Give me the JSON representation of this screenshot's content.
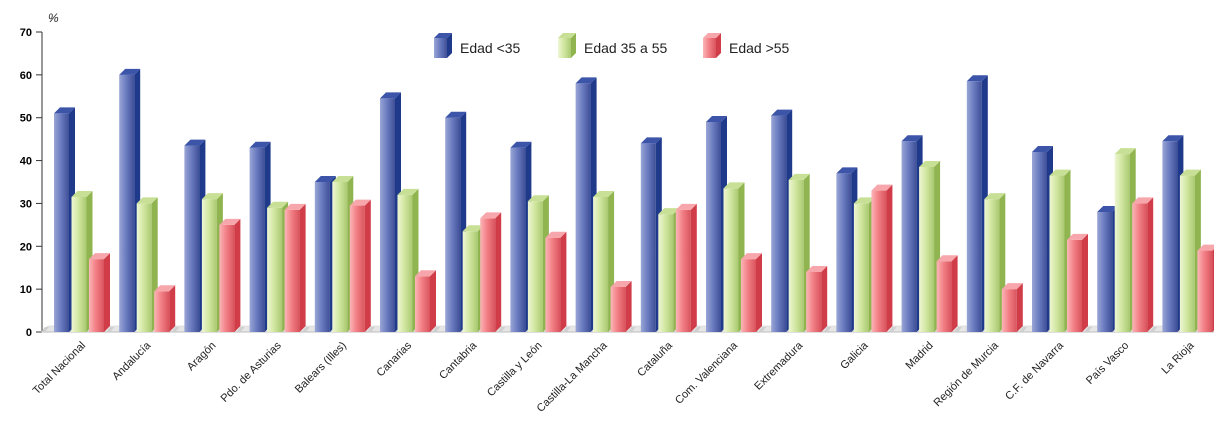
{
  "chart_data": {
    "type": "bar",
    "title": "",
    "ylabel": "%",
    "xlabel": "",
    "ylim": [
      0,
      70
    ],
    "yticks": [
      0,
      10,
      20,
      30,
      40,
      50,
      60,
      70
    ],
    "grid": false,
    "legend_position": "top-center",
    "style": "3d",
    "categories": [
      "Total Nacional",
      "Andalucía",
      "Aragón",
      "Pdo. de Asturias",
      "Balears (Illes)",
      "Canarias",
      "Cantabria",
      "Castilla y León",
      "Castilla-La Mancha",
      "Cataluña",
      "Com. Valenciana",
      "Extremadura",
      "Galicia",
      "Madrid",
      "Región de Murcia",
      "C.F. de Navarra",
      "País Vasco",
      "La Rioja"
    ],
    "series": [
      {
        "name": "Edad <35",
        "color": "#5a6fb8",
        "values": [
          51,
          60,
          43.5,
          43,
          35,
          54.5,
          50,
          43,
          58,
          44,
          49,
          50.5,
          37,
          44.5,
          58.5,
          42,
          28,
          44.5
        ]
      },
      {
        "name": "Edad 35 a 55",
        "color": "#cde49a",
        "values": [
          31.5,
          30,
          31,
          29,
          35,
          32,
          23.5,
          30.5,
          31.5,
          27.5,
          33.5,
          35.5,
          30,
          38.5,
          31,
          36.5,
          41.5,
          36.5
        ]
      },
      {
        "name": "Edad >55",
        "color": "#f0787e",
        "values": [
          17,
          9.5,
          25,
          28.5,
          29.5,
          13,
          26.5,
          22,
          10.5,
          28.5,
          17,
          14,
          33,
          16.5,
          10,
          21.5,
          30,
          19
        ]
      }
    ]
  }
}
